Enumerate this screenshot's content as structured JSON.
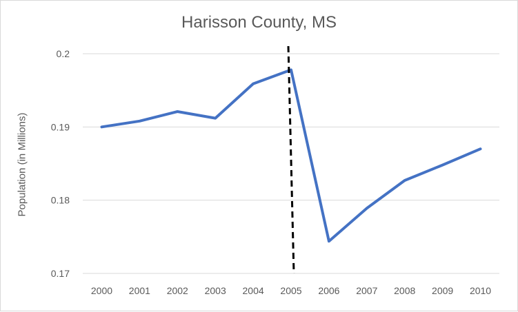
{
  "chart_data": {
    "type": "line",
    "title": "Harisson County, MS",
    "xlabel": "",
    "ylabel": "Population (in Millions)",
    "x": [
      "2000",
      "2001",
      "2002",
      "2003",
      "2004",
      "2005",
      "2006",
      "2007",
      "2008",
      "2009",
      "2010"
    ],
    "series": [
      {
        "values": [
          0.19,
          0.1908,
          0.1921,
          0.1912,
          0.1959,
          0.1978,
          0.1744,
          0.1789,
          0.1827,
          0.1848,
          0.187
        ],
        "color": "#4472c4"
      }
    ],
    "ylim": [
      0.17,
      0.2
    ],
    "yticks": [
      "0.17",
      "0.18",
      "0.19",
      "0.2"
    ],
    "ytick_values": [
      0.17,
      0.18,
      0.19,
      0.2
    ],
    "grid": "horizontal",
    "legend": "none",
    "annotations": [
      {
        "type": "vertical-dashed-line",
        "x": "2005",
        "color": "#000000"
      }
    ]
  }
}
